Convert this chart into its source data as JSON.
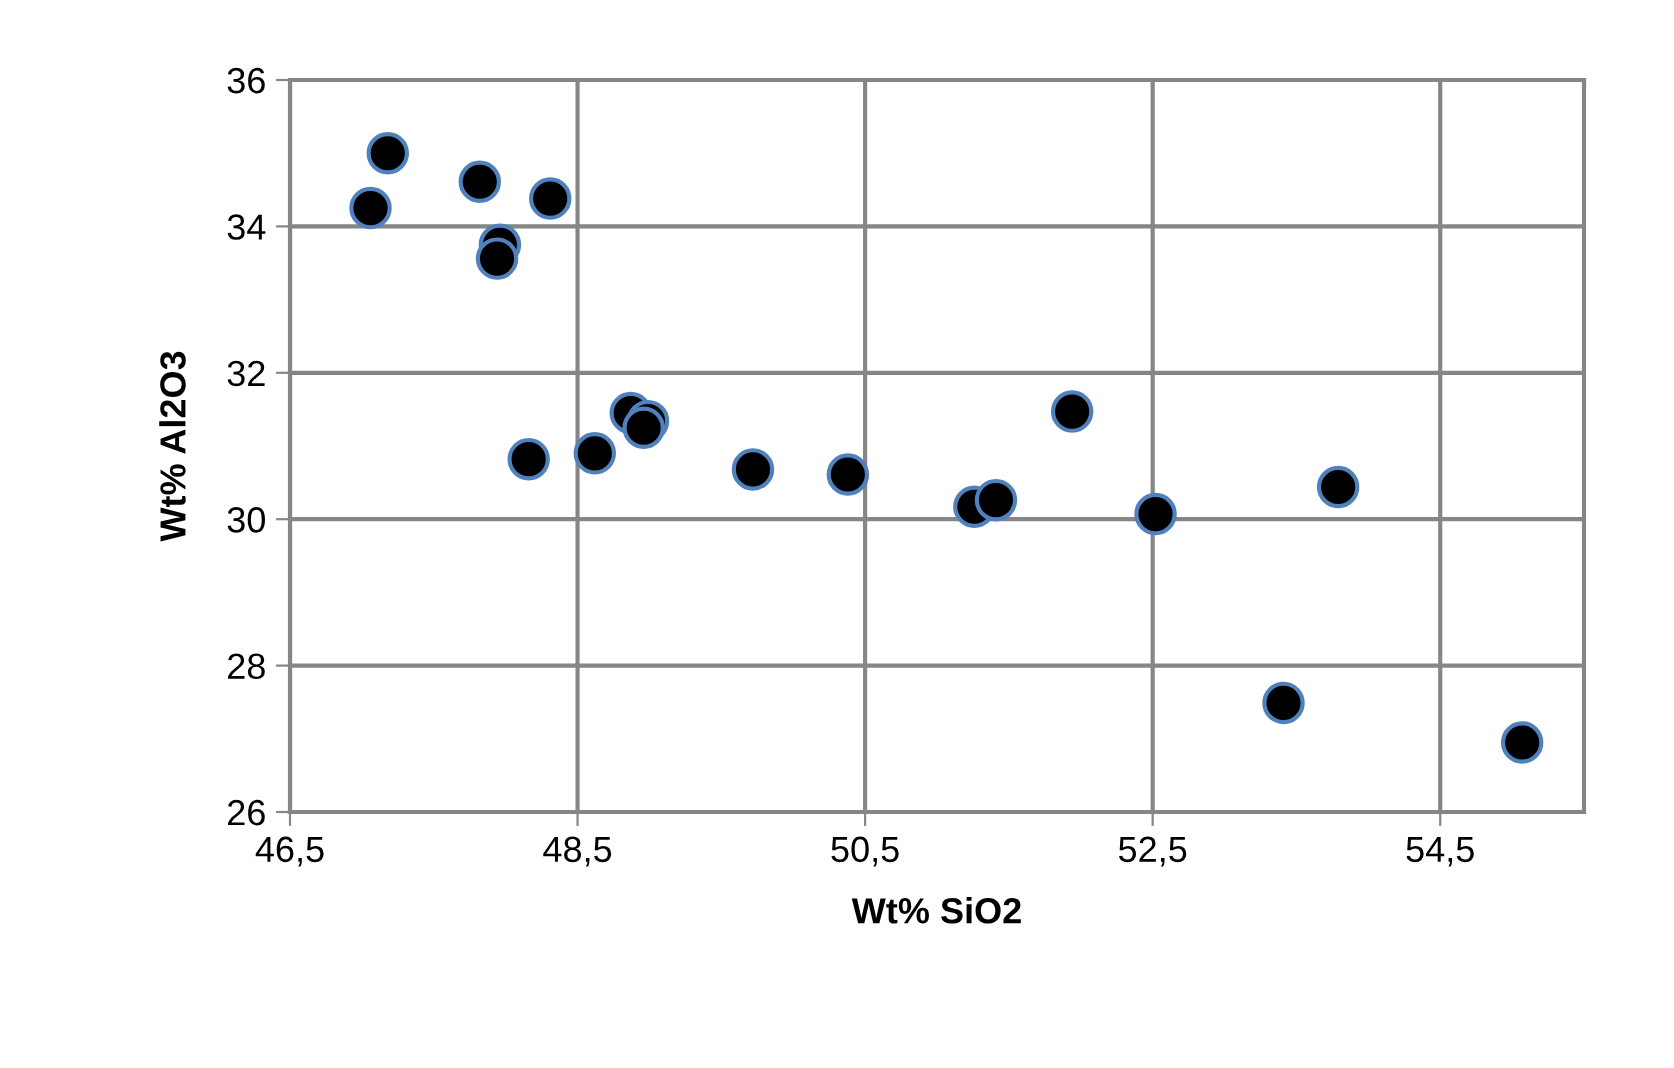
{
  "chart_data": {
    "type": "scatter",
    "xlabel": "Wt% SiO2",
    "ylabel": "Wt% Al2O3",
    "series": [
      {
        "color": "#000000",
        "x": [
          47.18,
          47.06,
          47.82,
          48.31,
          47.96,
          47.94,
          48.16,
          48.62,
          48.87,
          48.99,
          48.96,
          49.72,
          50.38,
          51.26,
          51.41,
          51.94,
          52.52,
          53.41,
          53.79,
          55.07
        ],
        "values": [
          35.0,
          34.25,
          34.61,
          34.38,
          33.75,
          33.56,
          30.82,
          30.9,
          31.45,
          31.34,
          31.25,
          30.68,
          30.61,
          30.17,
          30.26,
          31.47,
          30.07,
          27.49,
          30.44,
          26.95
        ]
      }
    ],
    "marker": "circle",
    "xlim": [
      46.5,
      55.5
    ],
    "xticks": [
      {
        "value": 46.5,
        "label": "46,5"
      },
      {
        "value": 48.5,
        "label": "48,5"
      },
      {
        "value": 50.5,
        "label": "50,5"
      },
      {
        "value": 52.5,
        "label": "52,5"
      },
      {
        "value": 54.5,
        "label": "54,5"
      }
    ],
    "ylim": [
      26,
      36
    ],
    "yticks": [
      26,
      28,
      30,
      32,
      34,
      36
    ],
    "grid": true
  }
}
